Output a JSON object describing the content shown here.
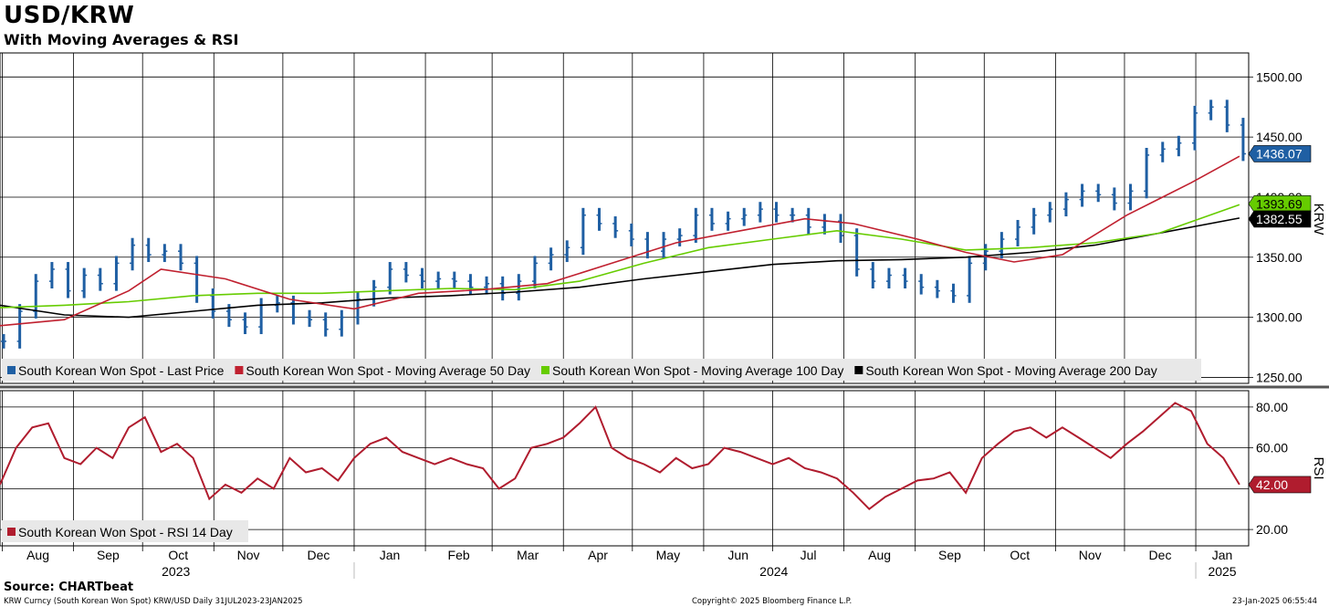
{
  "chart_data": [
    {
      "type": "line",
      "title": "USD/KRW",
      "subtitle": "With Moving Averages & RSI",
      "ylabel": "KRW",
      "ylim": [
        1245,
        1520
      ],
      "yticks": [
        "1500.00",
        "1450.00",
        "1400.00",
        "1350.00",
        "1300.00",
        "1250.00"
      ],
      "grid": true,
      "legend": "bottom-left",
      "series": [
        {
          "name": "South Korean Won Spot - Last Price",
          "color": "#1f5fa3",
          "style": "ohlc",
          "last_value": "1436.07",
          "x": [
            "2023-07-31",
            "2023-08-07",
            "2023-08-14",
            "2023-08-21",
            "2023-08-28",
            "2023-09-04",
            "2023-09-11",
            "2023-09-18",
            "2023-09-25",
            "2023-10-02",
            "2023-10-09",
            "2023-10-16",
            "2023-10-23",
            "2023-10-30",
            "2023-11-06",
            "2023-11-13",
            "2023-11-20",
            "2023-11-27",
            "2023-12-04",
            "2023-12-11",
            "2023-12-18",
            "2023-12-25",
            "2024-01-01",
            "2024-01-08",
            "2024-01-15",
            "2024-01-22",
            "2024-01-29",
            "2024-02-05",
            "2024-02-12",
            "2024-02-19",
            "2024-02-26",
            "2024-03-04",
            "2024-03-11",
            "2024-03-18",
            "2024-03-25",
            "2024-04-01",
            "2024-04-08",
            "2024-04-15",
            "2024-04-22",
            "2024-04-29",
            "2024-05-06",
            "2024-05-13",
            "2024-05-20",
            "2024-05-27",
            "2024-06-03",
            "2024-06-10",
            "2024-06-17",
            "2024-06-24",
            "2024-07-01",
            "2024-07-08",
            "2024-07-15",
            "2024-07-22",
            "2024-07-29",
            "2024-08-05",
            "2024-08-12",
            "2024-08-19",
            "2024-08-26",
            "2024-09-02",
            "2024-09-09",
            "2024-09-16",
            "2024-09-23",
            "2024-09-30",
            "2024-10-07",
            "2024-10-14",
            "2024-10-21",
            "2024-10-28",
            "2024-11-04",
            "2024-11-11",
            "2024-11-18",
            "2024-11-25",
            "2024-12-02",
            "2024-12-09",
            "2024-12-16",
            "2024-12-23",
            "2024-12-30",
            "2025-01-06",
            "2025-01-13",
            "2025-01-20"
          ],
          "values": [
            1280,
            1305,
            1330,
            1340,
            1322,
            1335,
            1328,
            1345,
            1360,
            1352,
            1355,
            1345,
            1318,
            1305,
            1298,
            1292,
            1310,
            1312,
            1300,
            1298,
            1290,
            1300,
            1315,
            1325,
            1340,
            1335,
            1330,
            1332,
            1330,
            1325,
            1328,
            1320,
            1330,
            1345,
            1352,
            1358,
            1385,
            1378,
            1372,
            1365,
            1355,
            1365,
            1368,
            1385,
            1378,
            1382,
            1385,
            1390,
            1385,
            1385,
            1375,
            1380,
            1368,
            1340,
            1330,
            1335,
            1330,
            1325,
            1322,
            1318,
            1345,
            1355,
            1365,
            1375,
            1385,
            1390,
            1398,
            1405,
            1402,
            1395,
            1405,
            1435,
            1440,
            1445,
            1470,
            1475,
            1460,
            1436.07
          ]
        },
        {
          "name": "South Korean Won Spot - Moving Average 50 Day",
          "color": "#c0202f",
          "x": [
            "2023-07-31",
            "2023-08-28",
            "2023-09-25",
            "2023-10-09",
            "2023-11-06",
            "2023-12-04",
            "2024-01-01",
            "2024-01-29",
            "2024-02-26",
            "2024-03-25",
            "2024-04-22",
            "2024-05-20",
            "2024-06-17",
            "2024-07-15",
            "2024-08-05",
            "2024-09-02",
            "2024-09-23",
            "2024-10-14",
            "2024-11-04",
            "2024-12-02",
            "2024-12-30",
            "2025-01-20"
          ],
          "values": [
            1293,
            1298,
            1322,
            1340,
            1332,
            1315,
            1307,
            1320,
            1323,
            1328,
            1345,
            1362,
            1372,
            1382,
            1378,
            1365,
            1354,
            1346,
            1352,
            1385,
            1412,
            1434
          ]
        },
        {
          "name": "South Korean Won Spot - Moving Average 100 Day",
          "color": "#66cc00",
          "last_value": "1393.69",
          "x": [
            "2023-07-31",
            "2023-08-28",
            "2023-09-25",
            "2023-10-23",
            "2023-11-20",
            "2023-12-18",
            "2024-01-15",
            "2024-02-12",
            "2024-03-11",
            "2024-04-08",
            "2024-05-06",
            "2024-06-03",
            "2024-07-01",
            "2024-07-29",
            "2024-08-26",
            "2024-09-23",
            "2024-10-21",
            "2024-11-18",
            "2024-12-16",
            "2025-01-20"
          ],
          "values": [
            1308,
            1310,
            1313,
            1318,
            1320,
            1320,
            1322,
            1324,
            1323,
            1330,
            1345,
            1358,
            1365,
            1372,
            1365,
            1356,
            1358,
            1362,
            1370,
            1393.69
          ]
        },
        {
          "name": "South Korean Won Spot - Moving Average 200 Day",
          "color": "#000000",
          "last_value": "1382.55",
          "x": [
            "2023-07-31",
            "2023-08-28",
            "2023-09-25",
            "2023-10-23",
            "2023-11-20",
            "2023-12-18",
            "2024-01-15",
            "2024-02-12",
            "2024-03-11",
            "2024-04-08",
            "2024-05-06",
            "2024-06-03",
            "2024-07-01",
            "2024-07-29",
            "2024-08-26",
            "2024-09-23",
            "2024-10-21",
            "2024-11-18",
            "2024-12-16",
            "2025-01-20"
          ],
          "values": [
            1310,
            1302,
            1300,
            1305,
            1310,
            1312,
            1316,
            1318,
            1321,
            1325,
            1332,
            1338,
            1344,
            1347,
            1348,
            1350,
            1354,
            1360,
            1370,
            1382.55
          ]
        }
      ]
    },
    {
      "type": "line",
      "ylabel": "RSI",
      "ylim": [
        12,
        88
      ],
      "yticks": [
        "80.00",
        "60.00",
        "20.00"
      ],
      "grid": true,
      "legend": "bottom-left",
      "series": [
        {
          "name": "South Korean Won Spot - RSI 14 Day",
          "color": "#b01c2e",
          "last_value": "42.00",
          "x": [
            "2023-07-31",
            "2023-08-07",
            "2023-08-14",
            "2023-08-21",
            "2023-08-28",
            "2023-09-04",
            "2023-09-11",
            "2023-09-18",
            "2023-09-25",
            "2023-10-02",
            "2023-10-09",
            "2023-10-16",
            "2023-10-23",
            "2023-10-30",
            "2023-11-06",
            "2023-11-13",
            "2023-11-20",
            "2023-11-27",
            "2023-12-04",
            "2023-12-11",
            "2023-12-18",
            "2023-12-25",
            "2024-01-01",
            "2024-01-08",
            "2024-01-15",
            "2024-01-22",
            "2024-01-29",
            "2024-02-05",
            "2024-02-12",
            "2024-02-19",
            "2024-02-26",
            "2024-03-04",
            "2024-03-11",
            "2024-03-18",
            "2024-03-25",
            "2024-04-01",
            "2024-04-08",
            "2024-04-15",
            "2024-04-22",
            "2024-04-29",
            "2024-05-06",
            "2024-05-13",
            "2024-05-20",
            "2024-05-27",
            "2024-06-03",
            "2024-06-10",
            "2024-06-17",
            "2024-06-24",
            "2024-07-01",
            "2024-07-08",
            "2024-07-15",
            "2024-07-22",
            "2024-07-29",
            "2024-08-05",
            "2024-08-12",
            "2024-08-19",
            "2024-08-26",
            "2024-09-02",
            "2024-09-09",
            "2024-09-16",
            "2024-09-23",
            "2024-09-30",
            "2024-10-07",
            "2024-10-14",
            "2024-10-21",
            "2024-10-28",
            "2024-11-04",
            "2024-11-11",
            "2024-11-18",
            "2024-11-25",
            "2024-12-02",
            "2024-12-09",
            "2024-12-16",
            "2024-12-23",
            "2024-12-30",
            "2025-01-06",
            "2025-01-13",
            "2025-01-20"
          ],
          "values": [
            42,
            60,
            70,
            72,
            55,
            52,
            60,
            55,
            70,
            75,
            58,
            62,
            55,
            35,
            42,
            38,
            45,
            40,
            55,
            48,
            50,
            44,
            55,
            62,
            65,
            58,
            55,
            52,
            55,
            52,
            50,
            40,
            45,
            60,
            62,
            65,
            72,
            80,
            60,
            55,
            52,
            48,
            55,
            50,
            52,
            60,
            58,
            55,
            52,
            55,
            50,
            48,
            45,
            38,
            30,
            36,
            40,
            44,
            45,
            48,
            38,
            55,
            62,
            68,
            70,
            65,
            70,
            65,
            60,
            55,
            62,
            68,
            75,
            82,
            78,
            62,
            55,
            42
          ]
        }
      ]
    }
  ],
  "x_axis": {
    "months": [
      "Aug",
      "Sep",
      "Oct",
      "Nov",
      "Dec",
      "Jan",
      "Feb",
      "Mar",
      "Apr",
      "May",
      "Jun",
      "Jul",
      "Aug",
      "Sep",
      "Oct",
      "Nov",
      "Dec",
      "Jan"
    ],
    "years": [
      "2023",
      "2024",
      "2025"
    ]
  },
  "footer": {
    "source": "Source: CHARTbeat",
    "ticker": "KRW Curncy (South Korean Won Spot) KRW/USD  Daily 31JUL2023-23JAN2025",
    "copyright": "Copyright© 2025 Bloomberg Finance L.P.",
    "timestamp": "23-Jan-2025 06:55:44"
  },
  "colors": {
    "price": "#1f5fa3",
    "ma50": "#c0202f",
    "ma100": "#66cc00",
    "ma200": "#000000",
    "rsi": "#b01c2e"
  }
}
